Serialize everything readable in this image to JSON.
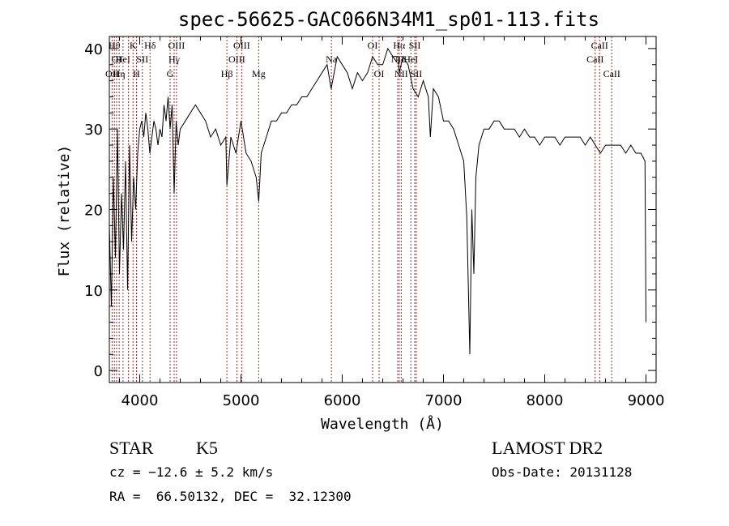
{
  "chart_data": {
    "type": "line",
    "title": "spec-56625-GAC066N34M1_sp01-113.fits",
    "xlabel": "Wavelength (Å)",
    "ylabel": "Flux (relative)",
    "xlim": [
      3700,
      9100
    ],
    "ylim": [
      -1.5,
      41.5
    ],
    "x_ticks": [
      4000,
      5000,
      6000,
      7000,
      8000,
      9000
    ],
    "x_tick_labels": [
      "4000",
      "5000",
      "6000",
      "7000",
      "8000",
      "9000"
    ],
    "y_ticks": [
      0,
      10,
      20,
      30,
      40
    ],
    "y_tick_labels": [
      "0",
      "10",
      "20",
      "30",
      "40"
    ],
    "grid": false,
    "line_color": "#000000",
    "marker_color": "#b22222",
    "spectrum": {
      "x": [
        3700,
        3720,
        3740,
        3760,
        3780,
        3800,
        3820,
        3840,
        3860,
        3880,
        3900,
        3920,
        3940,
        3960,
        3980,
        4000,
        4020,
        4040,
        4060,
        4080,
        4100,
        4120,
        4140,
        4160,
        4180,
        4200,
        4220,
        4240,
        4260,
        4280,
        4300,
        4320,
        4340,
        4360,
        4380,
        4400,
        4450,
        4500,
        4550,
        4600,
        4650,
        4700,
        4750,
        4800,
        4850,
        4861,
        4900,
        4950,
        5000,
        5050,
        5100,
        5150,
        5175,
        5200,
        5250,
        5300,
        5350,
        5400,
        5450,
        5500,
        5550,
        5600,
        5650,
        5700,
        5750,
        5800,
        5850,
        5890,
        5950,
        6000,
        6050,
        6100,
        6150,
        6200,
        6250,
        6300,
        6350,
        6400,
        6450,
        6500,
        6550,
        6563,
        6600,
        6650,
        6700,
        6750,
        6800,
        6850,
        6870,
        6900,
        6950,
        7000,
        7050,
        7100,
        7150,
        7200,
        7230,
        7260,
        7280,
        7300,
        7320,
        7350,
        7400,
        7450,
        7500,
        7550,
        7600,
        7650,
        7700,
        7750,
        7800,
        7850,
        7900,
        7950,
        8000,
        8050,
        8100,
        8150,
        8200,
        8250,
        8300,
        8350,
        8400,
        8450,
        8500,
        8550,
        8600,
        8650,
        8700,
        8750,
        8800,
        8850,
        8900,
        8950,
        8990,
        9000
      ],
      "y": [
        18,
        8,
        24,
        14,
        30,
        12,
        22,
        15,
        26,
        10,
        28,
        16,
        24,
        20,
        27,
        30,
        31,
        29,
        32,
        30,
        27,
        29,
        31,
        30,
        28,
        30,
        29,
        33,
        31,
        34,
        30,
        33,
        22,
        31,
        28,
        30,
        31,
        32,
        33,
        32,
        31,
        29,
        30,
        28,
        29,
        23,
        29,
        27,
        31,
        27,
        26,
        24,
        21,
        27,
        29,
        31,
        31,
        32,
        32,
        33,
        33,
        34,
        34,
        35,
        36,
        37,
        38,
        35,
        39,
        38,
        37,
        35,
        37,
        36,
        37,
        39,
        38,
        38,
        40,
        39,
        39,
        37,
        39,
        38,
        35,
        34,
        36,
        34,
        29,
        35,
        34,
        31,
        31,
        30,
        28,
        26,
        19,
        2,
        20,
        12,
        24,
        28,
        30,
        30,
        31,
        31,
        30,
        30,
        30,
        29,
        30,
        29,
        29,
        28,
        29,
        29,
        29,
        28,
        29,
        29,
        29,
        29,
        28,
        29,
        28,
        27,
        28,
        28,
        28,
        28,
        27,
        28,
        27,
        27,
        26,
        6
      ]
    },
    "line_markers": [
      {
        "wave": 3727,
        "label": "OII",
        "row": 3
      },
      {
        "wave": 3750,
        "label": "Hθ",
        "row": 1
      },
      {
        "wave": 3771,
        "label": "OI",
        "row": 2
      },
      {
        "wave": 3797,
        "label": "Hη",
        "row": 3
      },
      {
        "wave": 3835,
        "label": "HeI",
        "row": 2
      },
      {
        "wave": 3889,
        "label": "",
        "row": 0
      },
      {
        "wave": 3934,
        "label": "K",
        "row": 1
      },
      {
        "wave": 3968,
        "label": "H",
        "row": 3
      },
      {
        "wave": 4026,
        "label": "SII",
        "row": 2
      },
      {
        "wave": 4102,
        "label": "Hδ",
        "row": 1
      },
      {
        "wave": 4300,
        "label": "G",
        "row": 3
      },
      {
        "wave": 4340,
        "label": "Hγ",
        "row": 2
      },
      {
        "wave": 4363,
        "label": "OIII",
        "row": 1
      },
      {
        "wave": 4861,
        "label": "Hβ",
        "row": 3
      },
      {
        "wave": 4959,
        "label": "OIII",
        "row": 2
      },
      {
        "wave": 5007,
        "label": "OIII",
        "row": 1
      },
      {
        "wave": 5175,
        "label": "Mg",
        "row": 3
      },
      {
        "wave": 5893,
        "label": "Na",
        "row": 2
      },
      {
        "wave": 6300,
        "label": "OI",
        "row": 1
      },
      {
        "wave": 6364,
        "label": "OI",
        "row": 3
      },
      {
        "wave": 6548,
        "label": "NII",
        "row": 2
      },
      {
        "wave": 6563,
        "label": "Hα",
        "row": 1
      },
      {
        "wave": 6583,
        "label": "NII",
        "row": 3
      },
      {
        "wave": 6678,
        "label": "HeI",
        "row": 2
      },
      {
        "wave": 6716,
        "label": "SII",
        "row": 1
      },
      {
        "wave": 6731,
        "label": "SII",
        "row": 3
      },
      {
        "wave": 8498,
        "label": "CaII",
        "row": 2
      },
      {
        "wave": 8542,
        "label": "CaII",
        "row": 1
      },
      {
        "wave": 8662,
        "label": "CaII",
        "row": 3
      }
    ]
  },
  "info": {
    "class_label": "STAR",
    "subclass_label": "K5",
    "survey": "LAMOST DR2",
    "cz": "cz = −12.6 ± 5.2 km/s",
    "obs_date": "Obs-Date: 20131128",
    "radec": "RA =  66.50132, DEC =  32.12300"
  }
}
